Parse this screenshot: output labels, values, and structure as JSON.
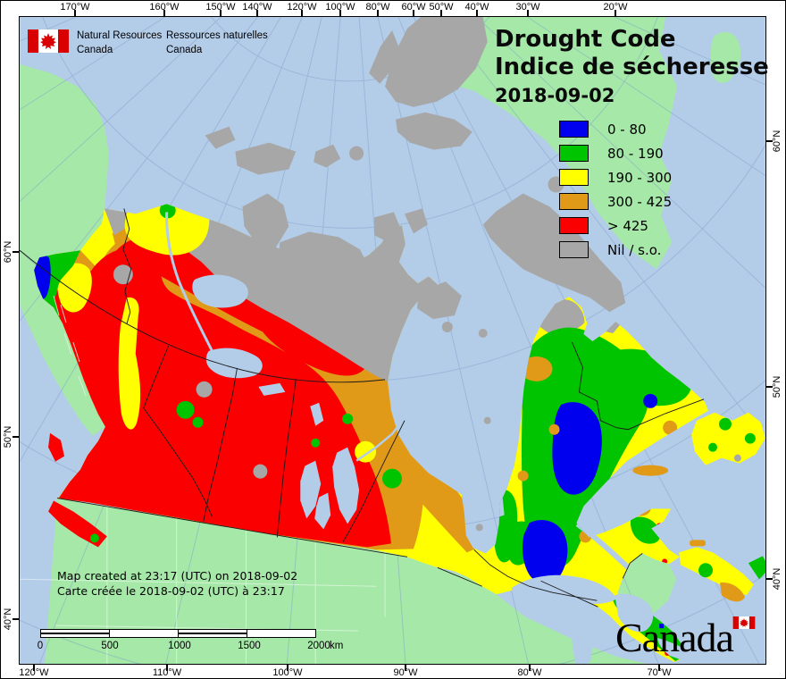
{
  "logo": {
    "en_line1": "Natural Resources",
    "en_line2": "Canada",
    "fr_line1": "Ressources naturelles",
    "fr_line2": "Canada"
  },
  "title": {
    "line1": "Drought Code",
    "line2": "Indice de sécheresse",
    "date": "2018-09-02"
  },
  "legend": {
    "items": [
      {
        "label": "0 - 80",
        "color": "#0000ee"
      },
      {
        "label": "80 - 190",
        "color": "#00c400"
      },
      {
        "label": "190 - 300",
        "color": "#ffff00"
      },
      {
        "label": "300 - 425",
        "color": "#e09a18"
      },
      {
        "label": "> 425",
        "color": "#fb0000"
      },
      {
        "label": "Nil / s.o.",
        "color": "#a7a7a7"
      }
    ]
  },
  "credits": {
    "line1": "Map created at 23:17 (UTC) on 2018-09-02",
    "line2": "Carte créée le 2018-09-02 (UTC) à 23:17"
  },
  "scalebar": {
    "ticks": [
      "0",
      "500",
      "1000",
      "1500",
      "2000"
    ],
    "unit": "km"
  },
  "wordmark": {
    "text": "Canada"
  },
  "axis": {
    "top": [
      {
        "label": "170°W",
        "pos": 83
      },
      {
        "label": "160°W",
        "pos": 183
      },
      {
        "label": "150°W",
        "pos": 246
      },
      {
        "label": "140°W",
        "pos": 287
      },
      {
        "label": "120°W",
        "pos": 337
      },
      {
        "label": "100°W",
        "pos": 380
      },
      {
        "label": "80°W",
        "pos": 422
      },
      {
        "label": "60°W",
        "pos": 462
      },
      {
        "label": "50°W",
        "pos": 493
      },
      {
        "label": "40°W",
        "pos": 533
      },
      {
        "label": "30°W",
        "pos": 590
      },
      {
        "label": "20°W",
        "pos": 688
      }
    ],
    "bottom": [
      {
        "label": "120°W",
        "pos": 37
      },
      {
        "label": "110°W",
        "pos": 186
      },
      {
        "label": "100°W",
        "pos": 321
      },
      {
        "label": "90°W",
        "pos": 453
      },
      {
        "label": "80°W",
        "pos": 592
      },
      {
        "label": "70°W",
        "pos": 737
      }
    ],
    "left": [
      {
        "label": "60°N",
        "pos": 281
      },
      {
        "label": "50°N",
        "pos": 488
      },
      {
        "label": "40°N",
        "pos": 692
      }
    ],
    "right": [
      {
        "label": "60°N",
        "pos": 157
      },
      {
        "label": "50°N",
        "pos": 432
      },
      {
        "label": "40°N",
        "pos": 647
      }
    ]
  },
  "map_colors": {
    "ocean": "#b3cce8",
    "foreign_land": "#a6e8a8",
    "graticule": "#7d9cc9",
    "flag_red": "#d80000",
    "boundary": "#1a1a1a"
  }
}
